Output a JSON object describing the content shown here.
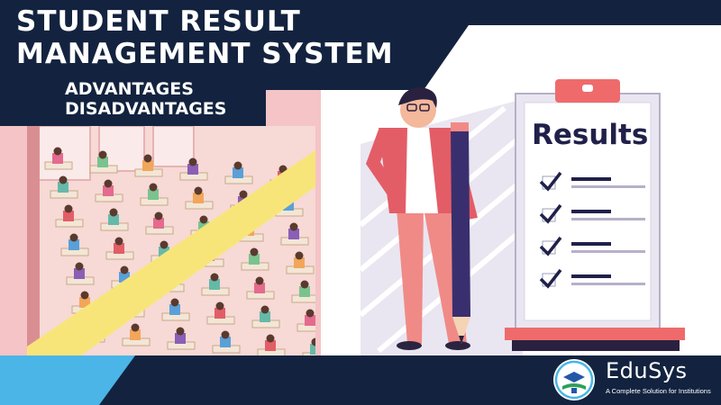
{
  "header": {
    "title_line1": "STUDENT RESULT",
    "title_line2": "MANAGEMENT SYSTEM",
    "subtitle_line1": "ADVANTAGES",
    "subtitle_line2": "DISADVANTAGES"
  },
  "board": {
    "heading": "Results",
    "checklist_count": 4
  },
  "brand": {
    "name": "EduSys",
    "tagline": "A Complete Solution for Institutions"
  },
  "colors": {
    "navy": "#13233f",
    "pink": "#f4a9a8",
    "yellow": "#f8e57a",
    "sky_blue": "#4ab5e6",
    "board_ink": "#20204a",
    "coral": "#ef6b6b"
  }
}
